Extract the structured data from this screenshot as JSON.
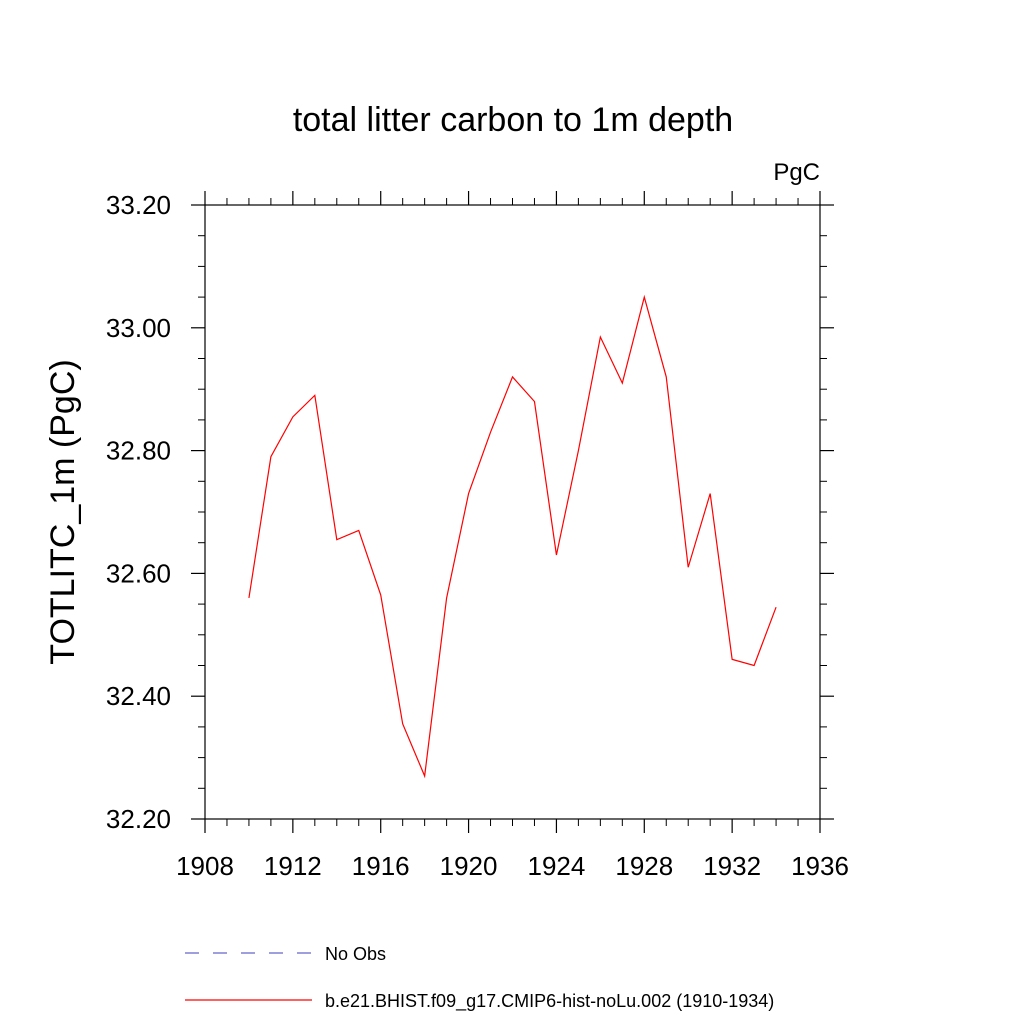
{
  "chart_data": {
    "type": "line",
    "title": "total litter carbon to 1m depth",
    "units_label": "PgC",
    "xlabel": "",
    "ylabel": "TOTLITC_1m  (PgC)",
    "xlim": [
      1908,
      1936
    ],
    "ylim": [
      32.2,
      33.2
    ],
    "xticks": [
      1908,
      1912,
      1916,
      1920,
      1924,
      1928,
      1932,
      1936
    ],
    "xtick_labels": [
      "1908",
      "1912",
      "1916",
      "1920",
      "1924",
      "1928",
      "1932",
      "1936"
    ],
    "yticks": [
      32.2,
      32.4,
      32.6,
      32.8,
      33.0,
      33.2
    ],
    "ytick_labels": [
      "32.20",
      "32.40",
      "32.60",
      "32.80",
      "33.00",
      "33.20"
    ],
    "grid": false,
    "legend_placement": "bottom",
    "series": [
      {
        "name": "b.e21.BHIST.f09_g17.CMIP6-hist-noLu.002 (1910-1934)",
        "color": "#ff0000",
        "style": "solid",
        "x": [
          1910,
          1911,
          1912,
          1913,
          1914,
          1915,
          1916,
          1917,
          1918,
          1919,
          1920,
          1921,
          1922,
          1923,
          1924,
          1925,
          1926,
          1927,
          1928,
          1929,
          1930,
          1931,
          1932,
          1933,
          1934
        ],
        "y": [
          32.56,
          32.79,
          32.855,
          32.89,
          32.655,
          32.67,
          32.565,
          32.355,
          32.27,
          32.56,
          32.73,
          32.83,
          32.92,
          32.88,
          32.63,
          32.8,
          32.985,
          32.91,
          33.05,
          32.92,
          32.61,
          32.73,
          32.46,
          32.45,
          32.545
        ]
      }
    ],
    "legend": [
      {
        "label": "No Obs",
        "color": "#6666cc",
        "style": "dashed"
      },
      {
        "label": "b.e21.BHIST.f09_g17.CMIP6-hist-noLu.002 (1910-1934)",
        "color": "#ff0000",
        "style": "solid"
      }
    ]
  }
}
